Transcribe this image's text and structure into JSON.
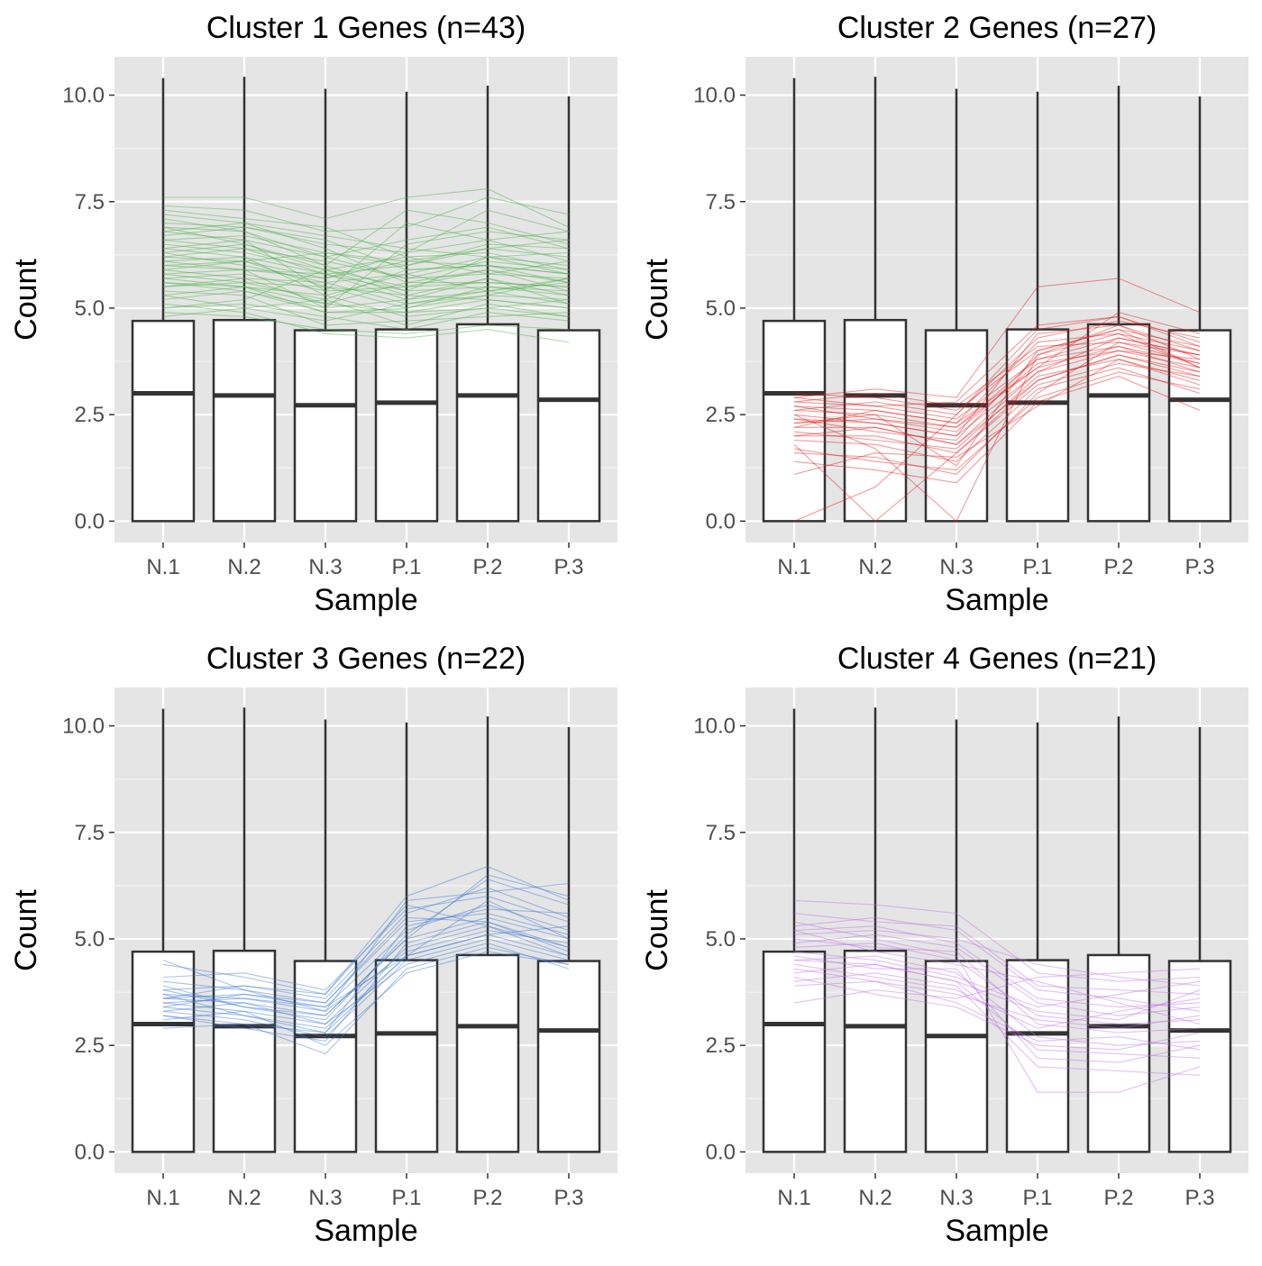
{
  "chart_data": [
    {
      "type": "box",
      "title": "Cluster 1 Genes (n=43)",
      "xlabel": "Sample",
      "ylabel": "Count",
      "categories": [
        "N.1",
        "N.2",
        "N.3",
        "P.1",
        "P.2",
        "P.3"
      ],
      "ylim": [
        -0.5,
        10.9
      ],
      "yticks": [
        "0.0",
        "2.5",
        "5.0",
        "7.5",
        "10.0"
      ],
      "grid": true,
      "boxes": [
        {
          "sample": "N.1",
          "lower": 0.0,
          "q1": 0.0,
          "median": 3.0,
          "q3": 4.7,
          "upper": 10.4
        },
        {
          "sample": "N.2",
          "lower": 0.0,
          "q1": 0.0,
          "median": 2.95,
          "q3": 4.72,
          "upper": 10.43
        },
        {
          "sample": "N.3",
          "lower": 0.0,
          "q1": 0.0,
          "median": 2.72,
          "q3": 4.48,
          "upper": 10.15
        },
        {
          "sample": "P.1",
          "lower": 0.0,
          "q1": 0.0,
          "median": 2.78,
          "q3": 4.5,
          "upper": 10.08
        },
        {
          "sample": "P.2",
          "lower": 0.0,
          "q1": 0.0,
          "median": 2.95,
          "q3": 4.62,
          "upper": 10.22
        },
        {
          "sample": "P.3",
          "lower": 0.0,
          "q1": 0.0,
          "median": 2.85,
          "q3": 4.48,
          "upper": 9.97
        }
      ],
      "line_color": "#4daf4a",
      "gene_lines": [
        [
          7.2,
          7.0,
          6.4,
          5.6,
          5.9,
          5.4
        ],
        [
          6.9,
          6.8,
          6.2,
          6.6,
          6.9,
          6.4
        ],
        [
          6.6,
          6.4,
          5.8,
          5.2,
          5.7,
          5.1
        ],
        [
          6.3,
          6.5,
          6.0,
          5.4,
          6.2,
          5.8
        ],
        [
          6.0,
          6.1,
          5.5,
          5.0,
          5.5,
          5.3
        ],
        [
          5.8,
          5.6,
          5.2,
          4.6,
          5.1,
          4.8
        ],
        [
          5.5,
          5.7,
          5.6,
          5.8,
          5.4,
          5.7
        ],
        [
          5.2,
          5.4,
          4.9,
          4.9,
          5.2,
          5.0
        ],
        [
          7.4,
          7.3,
          6.8,
          6.9,
          7.6,
          7.2
        ],
        [
          7.6,
          7.6,
          7.1,
          7.6,
          7.8,
          6.9
        ],
        [
          6.8,
          6.6,
          5.4,
          7.0,
          6.6,
          6.8
        ],
        [
          5.0,
          5.2,
          5.9,
          6.2,
          5.8,
          6.1
        ],
        [
          4.9,
          4.8,
          4.5,
          4.4,
          4.6,
          4.5
        ],
        [
          5.9,
          6.1,
          6.3,
          6.1,
          6.4,
          6.2
        ],
        [
          6.1,
          5.9,
          5.0,
          6.5,
          6.8,
          6.6
        ],
        [
          6.7,
          6.9,
          6.6,
          5.9,
          6.0,
          5.6
        ],
        [
          5.6,
          5.5,
          5.3,
          4.8,
          5.0,
          5.2
        ],
        [
          6.4,
          6.2,
          5.8,
          5.4,
          5.5,
          5.4
        ],
        [
          5.3,
          5.0,
          4.7,
          5.1,
          5.3,
          5.7
        ],
        [
          7.0,
          6.9,
          6.5,
          6.3,
          6.6,
          6.1
        ],
        [
          6.2,
          6.4,
          6.1,
          5.7,
          6.1,
          5.9
        ],
        [
          5.7,
          5.8,
          5.4,
          5.5,
          5.9,
          5.6
        ],
        [
          6.5,
          6.3,
          5.9,
          5.3,
          5.2,
          5.0
        ],
        [
          5.4,
          5.3,
          4.6,
          4.7,
          4.8,
          4.9
        ],
        [
          4.8,
          5.0,
          5.2,
          5.9,
          6.0,
          5.8
        ],
        [
          6.0,
          5.9,
          5.7,
          6.3,
          7.3,
          6.8
        ],
        [
          7.3,
          7.1,
          6.9,
          6.2,
          6.3,
          5.9
        ],
        [
          6.6,
          6.7,
          6.3,
          6.0,
          6.5,
          6.4
        ],
        [
          5.1,
          4.9,
          4.4,
          4.3,
          4.5,
          4.2
        ],
        [
          5.9,
          5.7,
          5.1,
          5.6,
          5.6,
          5.5
        ],
        [
          6.3,
          6.0,
          5.6,
          5.1,
          5.4,
          5.6
        ],
        [
          5.5,
          5.6,
          5.5,
          5.3,
          5.7,
          5.3
        ],
        [
          6.8,
          7.0,
          6.7,
          6.4,
          6.2,
          6.3
        ],
        [
          5.0,
          5.1,
          4.8,
          4.5,
          4.9,
          4.7
        ],
        [
          6.1,
          6.2,
          5.3,
          5.8,
          6.2,
          6.0
        ],
        [
          7.1,
          6.8,
          6.0,
          7.3,
          7.0,
          6.5
        ],
        [
          5.6,
          5.4,
          5.0,
          5.2,
          5.4,
          5.1
        ],
        [
          6.4,
          6.6,
          6.2,
          5.7,
          5.8,
          5.7
        ],
        [
          5.8,
          5.9,
          5.8,
          6.0,
          6.4,
          6.6
        ],
        [
          6.9,
          6.5,
          5.9,
          5.5,
          5.6,
          5.5
        ],
        [
          5.3,
          5.5,
          5.1,
          4.9,
          5.0,
          4.8
        ],
        [
          6.2,
          6.1,
          5.7,
          6.1,
          6.0,
          5.8
        ],
        [
          5.7,
          5.5,
          4.9,
          5.0,
          5.3,
          5.2
        ]
      ]
    },
    {
      "type": "box",
      "title": "Cluster 2 Genes (n=27)",
      "xlabel": "Sample",
      "ylabel": "Count",
      "categories": [
        "N.1",
        "N.2",
        "N.3",
        "P.1",
        "P.2",
        "P.3"
      ],
      "ylim": [
        -0.5,
        10.9
      ],
      "yticks": [
        "0.0",
        "2.5",
        "5.0",
        "7.5",
        "10.0"
      ],
      "grid": true,
      "boxes": [
        {
          "sample": "N.1",
          "lower": 0.0,
          "q1": 0.0,
          "median": 3.0,
          "q3": 4.7,
          "upper": 10.4
        },
        {
          "sample": "N.2",
          "lower": 0.0,
          "q1": 0.0,
          "median": 2.95,
          "q3": 4.72,
          "upper": 10.43
        },
        {
          "sample": "N.3",
          "lower": 0.0,
          "q1": 0.0,
          "median": 2.72,
          "q3": 4.48,
          "upper": 10.15
        },
        {
          "sample": "P.1",
          "lower": 0.0,
          "q1": 0.0,
          "median": 2.78,
          "q3": 4.5,
          "upper": 10.08
        },
        {
          "sample": "P.2",
          "lower": 0.0,
          "q1": 0.0,
          "median": 2.95,
          "q3": 4.62,
          "upper": 10.22
        },
        {
          "sample": "P.3",
          "lower": 0.0,
          "q1": 0.0,
          "median": 2.85,
          "q3": 4.48,
          "upper": 9.97
        }
      ],
      "line_color": "#e41a1c",
      "gene_lines": [
        [
          3.0,
          2.9,
          2.6,
          4.0,
          4.5,
          4.1
        ],
        [
          2.8,
          2.7,
          2.4,
          3.8,
          4.3,
          3.9
        ],
        [
          2.6,
          2.5,
          2.2,
          3.6,
          4.1,
          3.7
        ],
        [
          2.4,
          2.3,
          2.0,
          3.5,
          4.0,
          3.6
        ],
        [
          2.2,
          2.2,
          1.8,
          3.3,
          3.9,
          3.5
        ],
        [
          2.0,
          2.0,
          1.6,
          3.2,
          3.7,
          3.4
        ],
        [
          1.6,
          1.5,
          1.1,
          3.0,
          4.2,
          3.9
        ],
        [
          1.1,
          1.6,
          1.5,
          2.7,
          3.8,
          3.3
        ],
        [
          2.9,
          3.1,
          2.9,
          5.5,
          5.7,
          4.9
        ],
        [
          0.0,
          0.8,
          2.5,
          4.5,
          4.8,
          4.2
        ],
        [
          2.5,
          1.7,
          0.0,
          3.9,
          4.6,
          3.8
        ],
        [
          2.7,
          2.6,
          2.3,
          4.2,
          4.4,
          3.6
        ],
        [
          2.3,
          2.4,
          2.1,
          3.7,
          4.0,
          3.8
        ],
        [
          2.1,
          1.9,
          1.7,
          3.4,
          3.8,
          3.2
        ],
        [
          2.6,
          2.8,
          2.5,
          4.3,
          4.7,
          4.3
        ],
        [
          1.9,
          1.8,
          1.4,
          3.1,
          3.6,
          3.0
        ],
        [
          2.4,
          2.1,
          1.9,
          3.9,
          4.4,
          4.0
        ],
        [
          2.8,
          3.0,
          2.7,
          4.1,
          4.2,
          3.7
        ],
        [
          1.7,
          1.4,
          1.2,
          2.9,
          3.5,
          3.1
        ],
        [
          2.2,
          2.6,
          2.3,
          3.6,
          4.9,
          4.4
        ],
        [
          2.5,
          2.3,
          2.0,
          4.4,
          4.6,
          4.0
        ],
        [
          1.4,
          1.2,
          0.9,
          2.8,
          3.4,
          2.6
        ],
        [
          2.7,
          2.4,
          2.2,
          3.8,
          4.1,
          3.5
        ],
        [
          2.0,
          2.2,
          1.8,
          3.5,
          4.3,
          3.9
        ],
        [
          2.9,
          2.7,
          2.8,
          4.6,
          4.8,
          4.1
        ],
        [
          1.8,
          0.0,
          1.6,
          3.3,
          3.9,
          3.4
        ],
        [
          2.3,
          2.5,
          1.3,
          4.0,
          4.5,
          3.6
        ]
      ]
    },
    {
      "type": "box",
      "title": "Cluster 3 Genes (n=22)",
      "xlabel": "Sample",
      "ylabel": "Count",
      "categories": [
        "N.1",
        "N.2",
        "N.3",
        "P.1",
        "P.2",
        "P.3"
      ],
      "ylim": [
        -0.5,
        10.9
      ],
      "yticks": [
        "0.0",
        "2.5",
        "5.0",
        "7.5",
        "10.0"
      ],
      "grid": true,
      "boxes": [
        {
          "sample": "N.1",
          "lower": 0.0,
          "q1": 0.0,
          "median": 3.0,
          "q3": 4.7,
          "upper": 10.4
        },
        {
          "sample": "N.2",
          "lower": 0.0,
          "q1": 0.0,
          "median": 2.95,
          "q3": 4.72,
          "upper": 10.43
        },
        {
          "sample": "N.3",
          "lower": 0.0,
          "q1": 0.0,
          "median": 2.72,
          "q3": 4.48,
          "upper": 10.15
        },
        {
          "sample": "P.1",
          "lower": 0.0,
          "q1": 0.0,
          "median": 2.78,
          "q3": 4.5,
          "upper": 10.08
        },
        {
          "sample": "P.2",
          "lower": 0.0,
          "q1": 0.0,
          "median": 2.95,
          "q3": 4.62,
          "upper": 10.22
        },
        {
          "sample": "P.3",
          "lower": 0.0,
          "q1": 0.0,
          "median": 2.85,
          "q3": 4.48,
          "upper": 9.97
        }
      ],
      "line_color": "#3c78d8",
      "gene_lines": [
        [
          3.6,
          3.5,
          3.2,
          5.0,
          5.5,
          5.0
        ],
        [
          3.5,
          3.3,
          3.0,
          4.8,
          5.3,
          4.8
        ],
        [
          3.7,
          3.6,
          3.4,
          5.2,
          5.8,
          5.2
        ],
        [
          3.4,
          3.2,
          2.9,
          4.6,
          5.1,
          4.6
        ],
        [
          3.8,
          3.9,
          3.6,
          5.6,
          6.2,
          5.5
        ],
        [
          3.3,
          3.1,
          2.7,
          4.5,
          5.0,
          4.5
        ],
        [
          4.4,
          4.1,
          3.7,
          6.0,
          6.7,
          5.9
        ],
        [
          2.9,
          3.0,
          2.3,
          4.3,
          4.8,
          4.4
        ],
        [
          4.5,
          3.8,
          3.3,
          5.9,
          6.1,
          6.3
        ],
        [
          3.6,
          3.7,
          3.5,
          5.4,
          5.6,
          5.1
        ],
        [
          3.2,
          2.9,
          2.6,
          4.9,
          5.4,
          4.7
        ],
        [
          3.9,
          3.4,
          3.1,
          5.1,
          6.4,
          5.8
        ],
        [
          3.5,
          3.6,
          3.3,
          4.7,
          5.2,
          4.9
        ],
        [
          4.1,
          4.2,
          3.8,
          5.7,
          6.0,
          5.4
        ],
        [
          3.3,
          3.5,
          3.0,
          4.4,
          4.9,
          4.3
        ],
        [
          3.7,
          3.2,
          2.8,
          5.3,
          5.7,
          5.6
        ],
        [
          3.4,
          3.7,
          3.4,
          4.6,
          5.9,
          5.0
        ],
        [
          4.0,
          3.8,
          3.5,
          5.5,
          5.4,
          4.8
        ],
        [
          3.1,
          3.3,
          2.5,
          4.2,
          4.7,
          4.4
        ],
        [
          3.8,
          3.4,
          3.2,
          5.0,
          6.5,
          6.0
        ],
        [
          3.6,
          3.9,
          3.7,
          5.8,
          5.3,
          4.6
        ],
        [
          3.2,
          3.0,
          2.8,
          4.6,
          5.1,
          5.3
        ]
      ]
    },
    {
      "type": "box",
      "title": "Cluster 4 Genes (n=21)",
      "xlabel": "Sample",
      "ylabel": "Count",
      "categories": [
        "N.1",
        "N.2",
        "N.3",
        "P.1",
        "P.2",
        "P.3"
      ],
      "ylim": [
        -0.5,
        10.9
      ],
      "yticks": [
        "0.0",
        "2.5",
        "5.0",
        "7.5",
        "10.0"
      ],
      "grid": true,
      "boxes": [
        {
          "sample": "N.1",
          "lower": 0.0,
          "q1": 0.0,
          "median": 3.0,
          "q3": 4.7,
          "upper": 10.4
        },
        {
          "sample": "N.2",
          "lower": 0.0,
          "q1": 0.0,
          "median": 2.95,
          "q3": 4.72,
          "upper": 10.43
        },
        {
          "sample": "N.3",
          "lower": 0.0,
          "q1": 0.0,
          "median": 2.72,
          "q3": 4.48,
          "upper": 10.15
        },
        {
          "sample": "P.1",
          "lower": 0.0,
          "q1": 0.0,
          "median": 2.78,
          "q3": 4.5,
          "upper": 10.08
        },
        {
          "sample": "P.2",
          "lower": 0.0,
          "q1": 0.0,
          "median": 2.95,
          "q3": 4.62,
          "upper": 10.22
        },
        {
          "sample": "P.3",
          "lower": 0.0,
          "q1": 0.0,
          "median": 2.85,
          "q3": 4.48,
          "upper": 9.97
        }
      ],
      "line_color": "#c16ee8",
      "gene_lines": [
        [
          5.9,
          5.8,
          5.6,
          4.2,
          4.0,
          4.1
        ],
        [
          5.2,
          5.3,
          4.9,
          3.6,
          3.4,
          3.5
        ],
        [
          4.8,
          4.9,
          4.5,
          3.2,
          3.0,
          3.1
        ],
        [
          5.0,
          4.8,
          4.7,
          3.0,
          2.8,
          2.9
        ],
        [
          4.5,
          4.6,
          4.2,
          2.7,
          2.5,
          2.6
        ],
        [
          4.2,
          4.4,
          4.0,
          2.4,
          2.3,
          2.2
        ],
        [
          5.4,
          5.0,
          4.6,
          1.4,
          1.4,
          2.0
        ],
        [
          4.0,
          4.2,
          3.9,
          2.0,
          1.9,
          1.8
        ],
        [
          3.5,
          3.8,
          3.6,
          4.1,
          4.2,
          4.3
        ],
        [
          5.3,
          5.5,
          5.2,
          3.8,
          3.6,
          3.3
        ],
        [
          4.7,
          4.5,
          4.1,
          3.4,
          3.7,
          4.0
        ],
        [
          4.4,
          4.1,
          3.8,
          2.9,
          3.3,
          3.6
        ],
        [
          5.1,
          5.2,
          5.0,
          4.4,
          4.1,
          3.9
        ],
        [
          4.3,
          4.0,
          3.5,
          2.6,
          2.7,
          2.4
        ],
        [
          4.9,
          5.1,
          4.8,
          3.5,
          3.2,
          3.4
        ],
        [
          4.6,
          4.3,
          4.3,
          2.2,
          2.1,
          2.5
        ],
        [
          3.9,
          4.0,
          3.7,
          3.1,
          2.9,
          3.2
        ],
        [
          5.6,
          5.4,
          5.3,
          3.9,
          3.8,
          3.7
        ],
        [
          4.1,
          3.7,
          3.4,
          2.5,
          2.4,
          2.8
        ],
        [
          5.2,
          4.7,
          4.4,
          4.0,
          3.5,
          3.0
        ],
        [
          4.5,
          4.4,
          4.0,
          3.3,
          3.1,
          3.8
        ]
      ]
    }
  ]
}
